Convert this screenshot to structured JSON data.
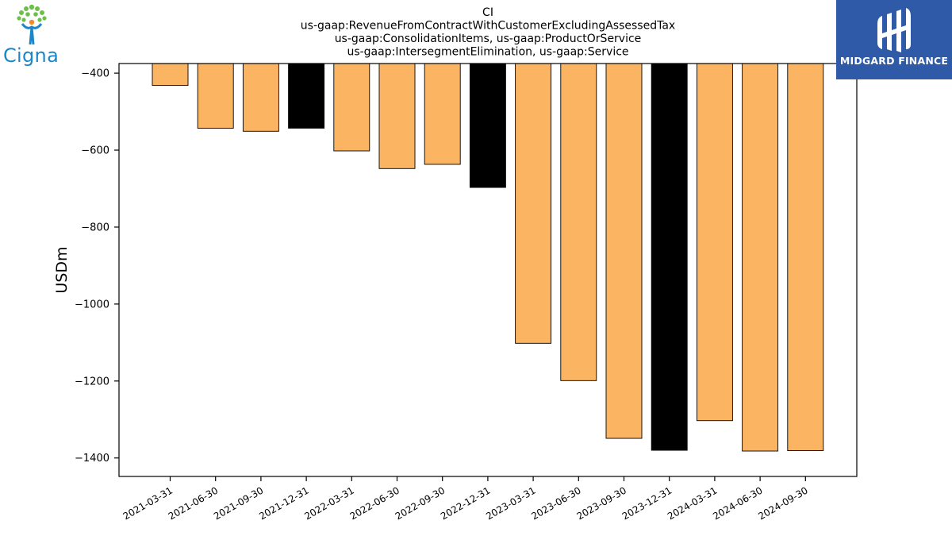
{
  "logos": {
    "left": {
      "name": "Cigna",
      "icon": "cigna-tree-person-logo",
      "color": "#1a87c9",
      "leaf_color": "#6cc04a",
      "figure_color": "#f28c28"
    },
    "right": {
      "name": "MIDGARD FINANCE",
      "icon": "midgard-finance-logo",
      "background": "#2f5aa8"
    }
  },
  "chart_data": {
    "type": "bar",
    "title_lines": [
      "CI",
      "us-gaap:RevenueFromContractWithCustomerExcludingAssessedTax",
      "us-gaap:ConsolidationItems, us-gaap:ProductOrService",
      "us-gaap:IntersegmentElimination, us-gaap:Service"
    ],
    "xlabel": "",
    "ylabel": "USDm",
    "ylim": [
      -1448,
      -375
    ],
    "yticks": [
      -400,
      -600,
      -800,
      -1000,
      -1200,
      -1400
    ],
    "categories": [
      "2021-03-31",
      "2021-06-30",
      "2021-09-30",
      "2021-12-31",
      "2022-03-31",
      "2022-06-30",
      "2022-09-30",
      "2022-12-31",
      "2023-03-31",
      "2023-06-30",
      "2023-09-30",
      "2023-12-31",
      "2024-03-31",
      "2024-06-30",
      "2024-09-30"
    ],
    "values": [
      -432,
      -543,
      -551,
      -543,
      -602,
      -648,
      -637,
      -697,
      -1102,
      -1199,
      -1349,
      -1380,
      -1303,
      -1382,
      -1381
    ],
    "highlight": [
      false,
      false,
      false,
      true,
      false,
      false,
      false,
      true,
      false,
      false,
      false,
      true,
      false,
      false,
      false
    ],
    "colors": {
      "bar": "#fbb462",
      "highlight": "#000000",
      "edge": "#000000"
    },
    "grid": false,
    "legend": "none"
  }
}
